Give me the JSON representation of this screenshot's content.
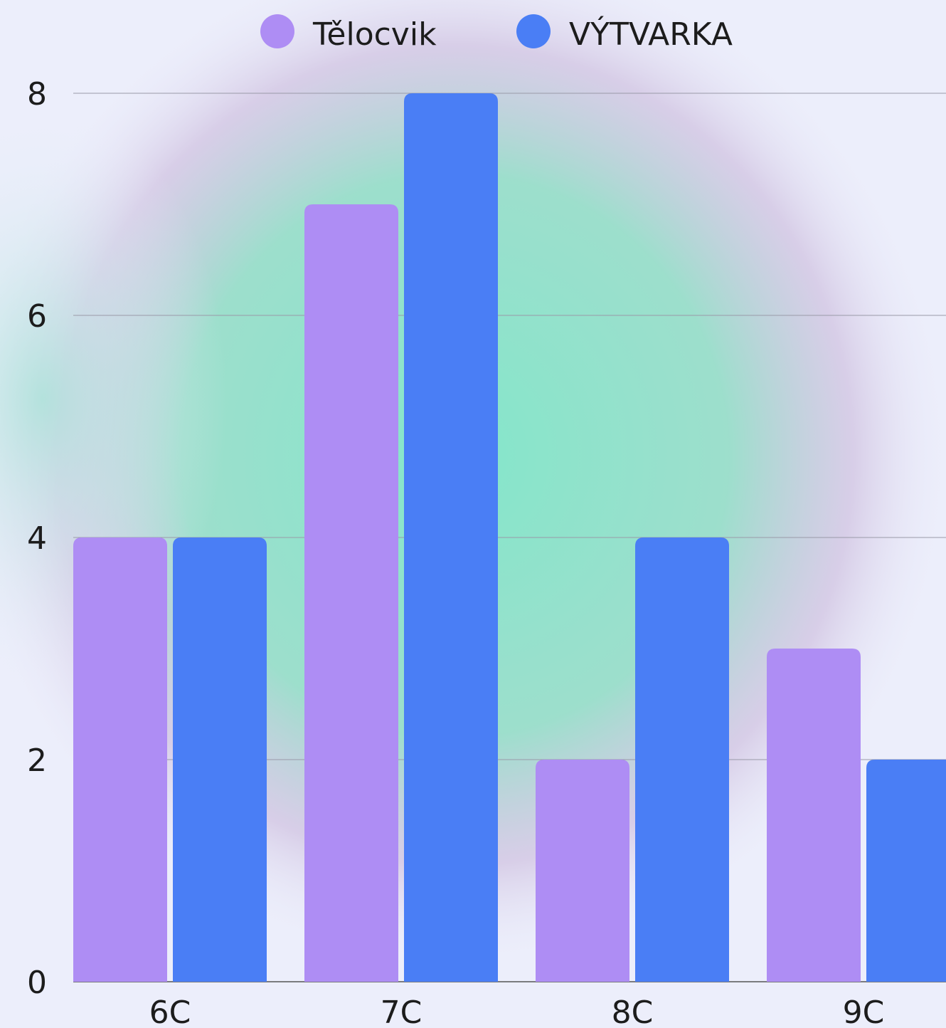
{
  "chart_data": {
    "type": "bar",
    "categories": [
      "6C",
      "7C",
      "8C",
      "9C"
    ],
    "series": [
      {
        "name": "Tělocvik",
        "color": "#ae8df4",
        "values": [
          4,
          7,
          2,
          3
        ]
      },
      {
        "name": "VÝTVARKA",
        "color": "#4a7ef5",
        "values": [
          4,
          8,
          4,
          2
        ]
      }
    ],
    "ylim": [
      0,
      8
    ],
    "yticks": [
      "0",
      "2",
      "4",
      "6",
      "8"
    ],
    "grid": true,
    "legend_position": "top-center"
  }
}
